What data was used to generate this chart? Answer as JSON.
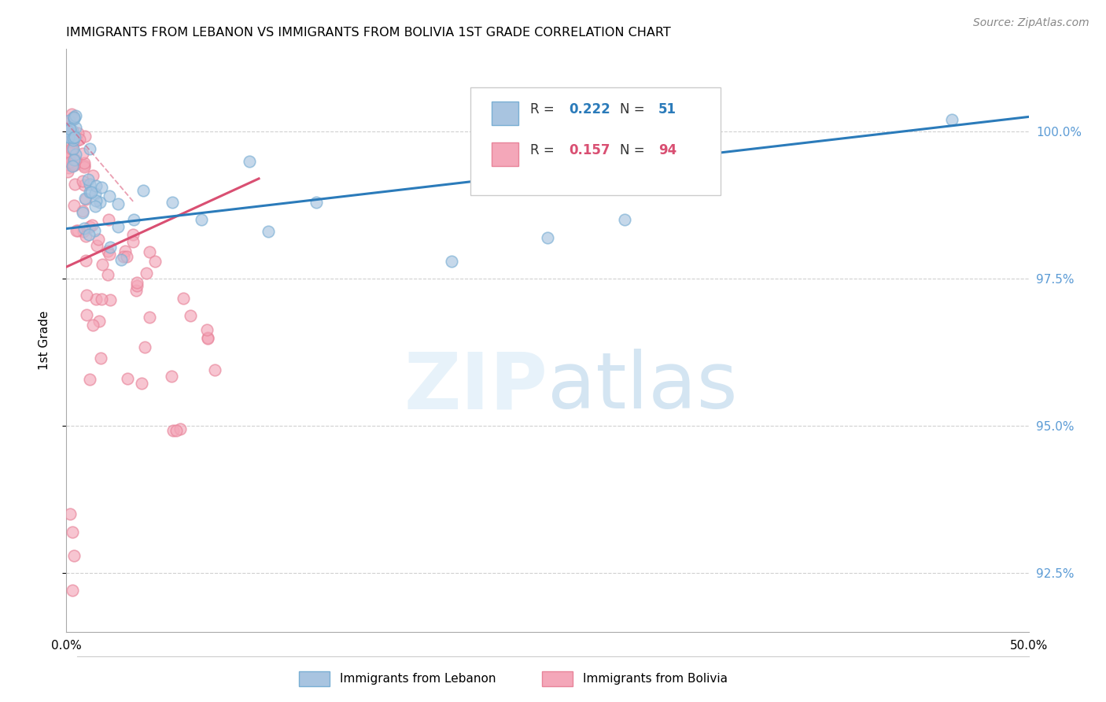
{
  "title": "IMMIGRANTS FROM LEBANON VS IMMIGRANTS FROM BOLIVIA 1ST GRADE CORRELATION CHART",
  "source": "Source: ZipAtlas.com",
  "ylabel": "1st Grade",
  "xlim": [
    0.0,
    50.0
  ],
  "ylim": [
    91.5,
    101.4
  ],
  "yticks": [
    92.5,
    95.0,
    97.5,
    100.0
  ],
  "ytick_labels": [
    "92.5%",
    "95.0%",
    "97.5%",
    "100.0%"
  ],
  "lebanon_R": 0.222,
  "lebanon_N": 51,
  "bolivia_R": 0.157,
  "bolivia_N": 94,
  "lebanon_color": "#a8c4e0",
  "bolivia_color": "#f4a7b9",
  "lebanon_edge_color": "#7aafd4",
  "bolivia_edge_color": "#e8849a",
  "lebanon_line_color": "#2b7bba",
  "bolivia_line_color": "#d94f72",
  "legend_lebanon": "Immigrants from Lebanon",
  "legend_bolivia": "Immigrants from Bolivia",
  "right_tick_color": "#5b9bd5",
  "title_fontsize": 11.5,
  "source_fontsize": 10
}
